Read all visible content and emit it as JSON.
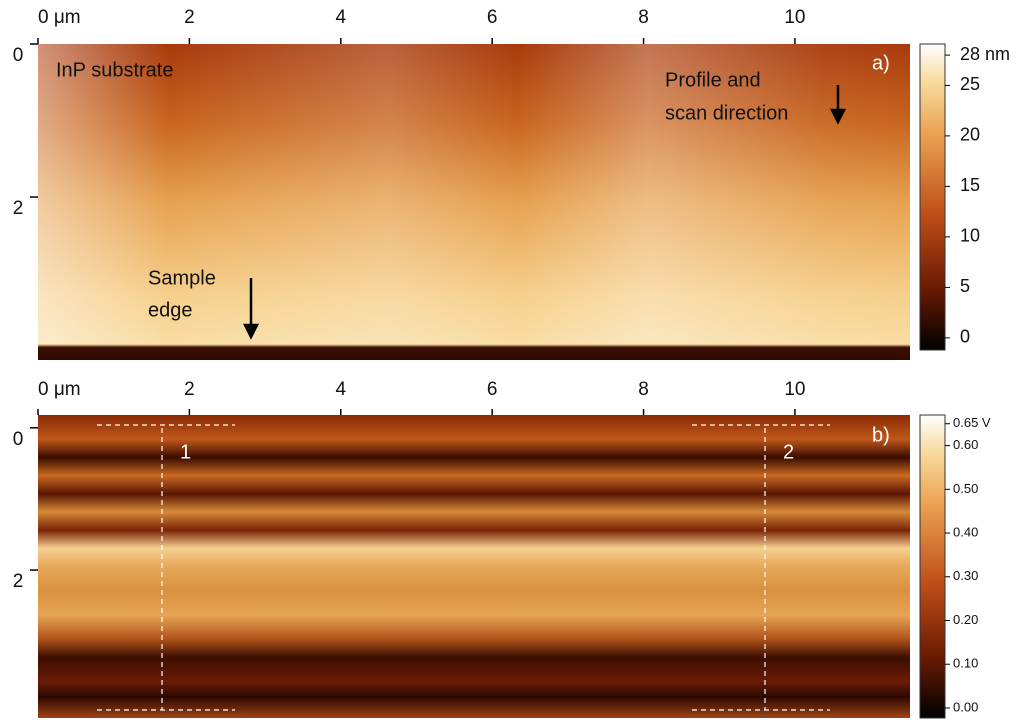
{
  "panels": [
    {
      "label": "a)",
      "xticks": [
        {
          "value": 0,
          "label": "0 μm"
        },
        2,
        4,
        6,
        8,
        10
      ],
      "xlim": [
        0,
        11.52
      ],
      "yticks": [
        0,
        2
      ],
      "ylim": [
        0,
        4.13
      ],
      "colorbar": {
        "clim": [
          -1.2,
          29.1
        ],
        "ticks": [
          {
            "value": 28,
            "label": "28 nm"
          },
          25,
          20,
          15,
          10,
          5,
          0
        ]
      },
      "annotations": [
        "InP substrate",
        "Profile and",
        "scan direction",
        "Sample",
        "edge"
      ]
    },
    {
      "label": "b)",
      "xticks": [
        {
          "value": 0,
          "label": "0 μm"
        },
        2,
        4,
        6,
        8,
        10
      ],
      "xlim": [
        0,
        11.52
      ],
      "yticks": [
        0,
        2
      ],
      "ylim": [
        -0.18,
        4.08
      ],
      "colorbar": {
        "clim": [
          -0.023,
          0.67
        ],
        "ticks": [
          {
            "value": 0.65,
            "label": "0.65 V"
          },
          {
            "value": 0.6,
            "label": "0.60"
          },
          {
            "value": 0.5,
            "label": "0.50"
          },
          {
            "value": 0.4,
            "label": "0.40"
          },
          {
            "value": 0.3,
            "label": "0.30"
          },
          {
            "value": 0.2,
            "label": "0.20"
          },
          {
            "value": 0.1,
            "label": "0.10"
          },
          {
            "value": 0,
            "label": "0.00"
          }
        ]
      },
      "annotations": [
        "1",
        "2"
      ]
    }
  ]
}
